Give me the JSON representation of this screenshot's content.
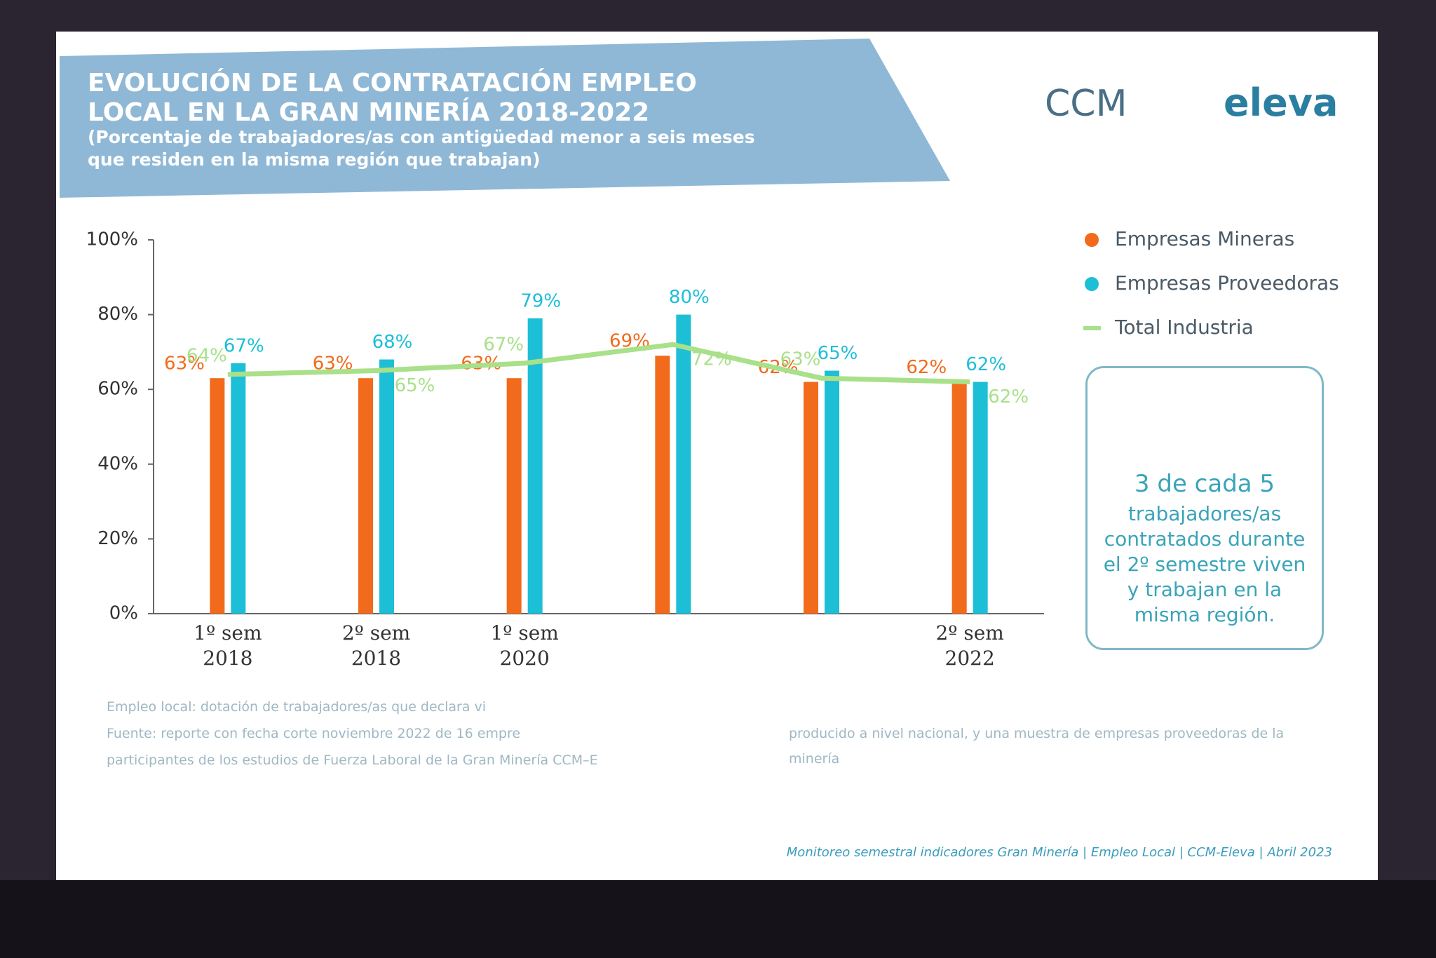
{
  "chart_data": {
    "type": "bar",
    "title": "EVOLUCIÓN DE LA CONTRATACIÓN EMPLEO LOCAL EN LA GRAN MINERÍA 2018-2022",
    "subtitle": "(Porcentaje de trabajadores/as con antigüedad menor a seis meses que residen en la misma región que trabajan)",
    "categories": [
      "1º sem 2018",
      "2º sem 2018",
      "1º sem 2020",
      null,
      null,
      "2º sem 2022"
    ],
    "ylim": [
      0,
      100
    ],
    "yticks": [
      {
        "value": 0,
        "label": "0%"
      },
      {
        "value": 20,
        "label": "20%"
      },
      {
        "value": 40,
        "label": "40%"
      },
      {
        "value": 60,
        "label": "60%"
      },
      {
        "value": 80,
        "label": "80%"
      },
      {
        "value": 100,
        "label": "100%"
      }
    ],
    "series": [
      {
        "name": "Empresas Mineras",
        "color": "#f26a1b",
        "values": [
          63,
          63,
          63,
          69,
          62,
          62
        ],
        "value_labels": [
          "63%",
          "63%",
          "63%",
          "69%",
          "62%",
          "62%"
        ]
      },
      {
        "name": "Empresas Proveedoras",
        "color": "#1cbfd6",
        "values": [
          67,
          68,
          79,
          80,
          65,
          62
        ],
        "value_labels": [
          "67%",
          "68%",
          "79%",
          "80%",
          "65%",
          "62%"
        ]
      },
      {
        "name": "Total Industria",
        "type": "line",
        "color": "#a9e08a",
        "values": [
          64,
          65,
          67,
          72,
          63,
          62
        ],
        "value_labels": [
          "64%",
          "65%",
          "67%",
          "72%",
          "63%",
          "62%"
        ]
      }
    ],
    "legend": "right"
  },
  "slide": {
    "logos": [
      "CCM",
      "eleva"
    ],
    "box": {
      "head": "3 de cada 5",
      "text": "trabajadores/as contratados durante el 2º semestre viven y trabajan en la misma región."
    },
    "notes": [
      "Empleo local: dotación de trabajadores/as que declara vi",
      "Fuente: reporte con fecha corte noviembre 2022 de 16 empre",
      "producido a nivel nacional, y una muestra de empresas proveedoras de la minería",
      "participantes de los estudios de Fuerza Laboral de la Gran Minería CCM–E"
    ],
    "footer": "Monitoreo semestral indicadores Gran Minería | Empleo Local | CCM-Eleva | Abril 2023"
  }
}
